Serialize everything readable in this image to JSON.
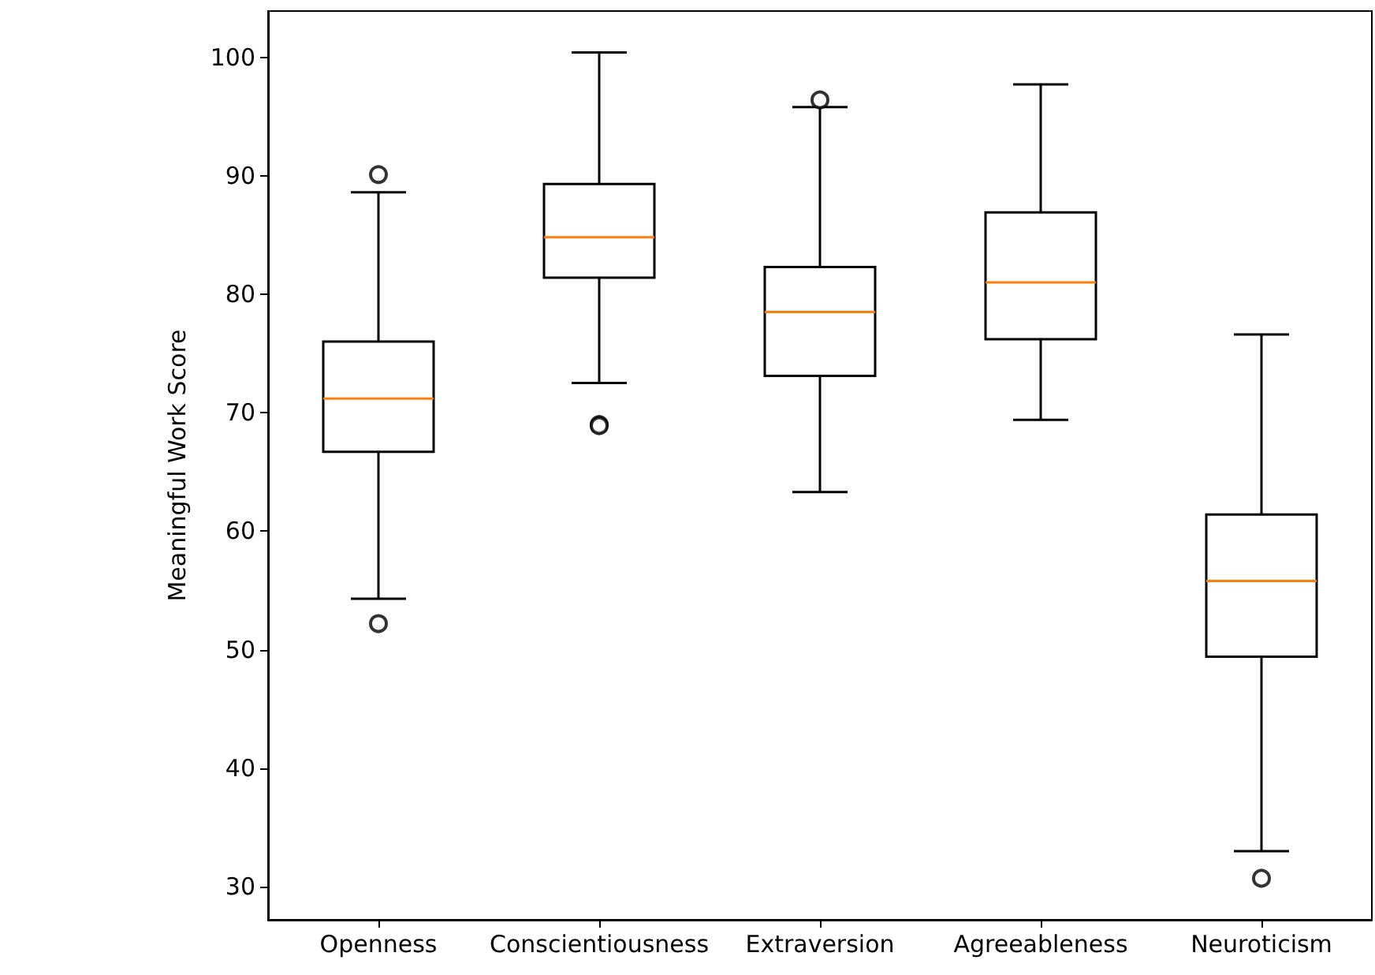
{
  "chart_data": {
    "type": "box",
    "ylabel": "Meaningful Work Score",
    "categories": [
      "Openness",
      "Conscientiousness",
      "Extraversion",
      "Agreeableness",
      "Neuroticism"
    ],
    "boxes": [
      {
        "low": 54.3,
        "q1": 66.7,
        "median": 71.2,
        "q3": 76.0,
        "high": 88.6,
        "outliers": [
          90.1,
          52.2
        ]
      },
      {
        "low": 72.5,
        "q1": 81.4,
        "median": 84.8,
        "q3": 89.3,
        "high": 100.4,
        "outliers": [
          69.0,
          68.9
        ]
      },
      {
        "low": 63.3,
        "q1": 73.1,
        "median": 78.5,
        "q3": 82.3,
        "high": 95.8,
        "outliers": [
          96.4
        ]
      },
      {
        "low": 69.4,
        "q1": 76.2,
        "median": 81.0,
        "q3": 86.9,
        "high": 97.7
      },
      {
        "low": 33.0,
        "q1": 49.4,
        "median": 55.8,
        "q3": 61.4,
        "high": 76.6,
        "outliers": [
          30.7
        ]
      }
    ],
    "color": "#000000",
    "marker": "circle",
    "ylim": [
      27.2,
      103.9
    ],
    "yticks": [
      30,
      40,
      50,
      60,
      70,
      80,
      90,
      100
    ],
    "grid": false
  }
}
